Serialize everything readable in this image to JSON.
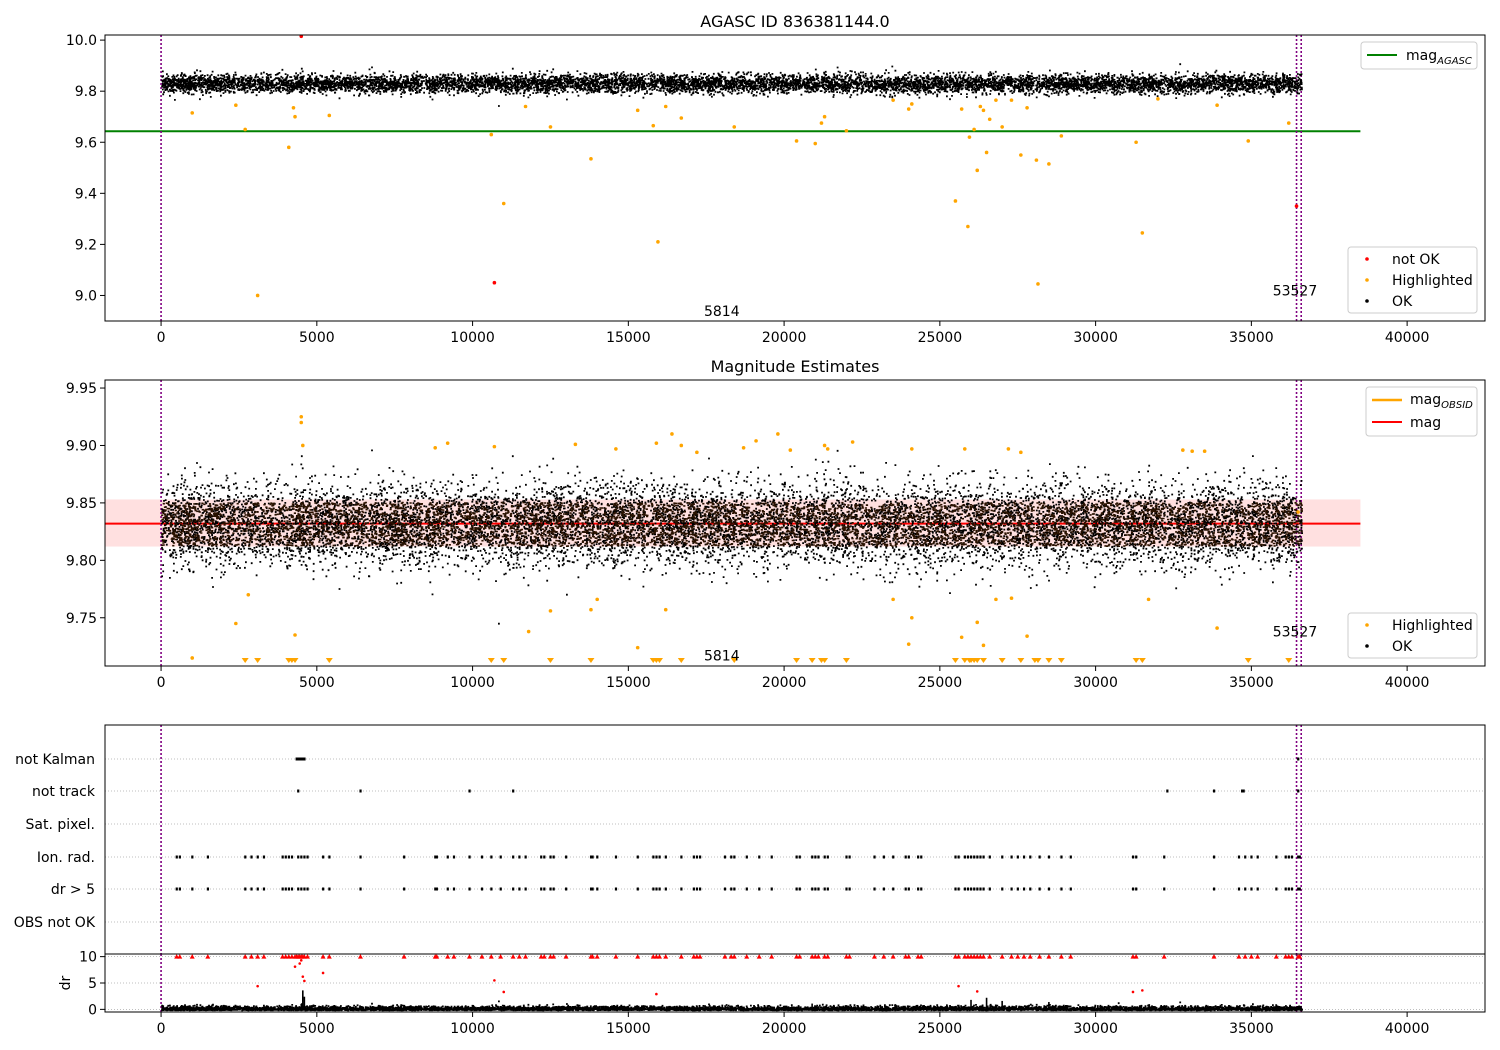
{
  "chart_data": [
    {
      "type": "scatter",
      "title": "AGASC ID 836381144.0",
      "xlim": [
        -1800,
        42500
      ],
      "ylim": [
        8.9,
        10.02
      ],
      "xticks": [
        0,
        5000,
        10000,
        15000,
        20000,
        25000,
        30000,
        35000,
        40000
      ],
      "yticks": [
        9.0,
        9.2,
        9.4,
        9.6,
        9.8,
        10.0
      ],
      "ytick_labels": [
        "9.0",
        "9.2",
        "9.4",
        "9.6",
        "9.8",
        "10.0"
      ],
      "reference_lines": [
        {
          "name": "mag_AGASC",
          "legend_main": "mag",
          "legend_sub": "AGASC",
          "y": 9.643,
          "x_range": [
            -1800,
            38500
          ],
          "color": "#008000"
        }
      ],
      "vertical_lines": {
        "x": [
          0,
          36450,
          36600
        ],
        "color": "#800080",
        "style": "dotted"
      },
      "annotations": [
        {
          "text": "5814",
          "x": 18000,
          "y": 8.94
        },
        {
          "text": "53527",
          "x": 36400,
          "y": 9.02
        }
      ],
      "ok_band": {
        "center": 9.832,
        "half_width": 0.04,
        "x_range": [
          0,
          36600
        ]
      },
      "outliers_highlighted": [
        {
          "x": 1000,
          "y": 9.715
        },
        {
          "x": 2400,
          "y": 9.745
        },
        {
          "x": 2700,
          "y": 9.65
        },
        {
          "x": 3100,
          "y": 9.0
        },
        {
          "x": 4100,
          "y": 9.58
        },
        {
          "x": 4250,
          "y": 9.735
        },
        {
          "x": 4300,
          "y": 9.7
        },
        {
          "x": 5400,
          "y": 9.705
        },
        {
          "x": 10600,
          "y": 9.63
        },
        {
          "x": 11000,
          "y": 9.36
        },
        {
          "x": 11700,
          "y": 9.74
        },
        {
          "x": 12500,
          "y": 9.66
        },
        {
          "x": 13800,
          "y": 9.535
        },
        {
          "x": 15300,
          "y": 9.725
        },
        {
          "x": 15800,
          "y": 9.665
        },
        {
          "x": 15950,
          "y": 9.21
        },
        {
          "x": 16200,
          "y": 9.74
        },
        {
          "x": 16700,
          "y": 9.695
        },
        {
          "x": 18400,
          "y": 9.66
        },
        {
          "x": 20400,
          "y": 9.605
        },
        {
          "x": 21000,
          "y": 9.595
        },
        {
          "x": 21200,
          "y": 9.675
        },
        {
          "x": 21300,
          "y": 9.7
        },
        {
          "x": 22000,
          "y": 9.645
        },
        {
          "x": 23500,
          "y": 9.765
        },
        {
          "x": 24000,
          "y": 9.73
        },
        {
          "x": 24100,
          "y": 9.75
        },
        {
          "x": 25500,
          "y": 9.37
        },
        {
          "x": 25700,
          "y": 9.73
        },
        {
          "x": 25900,
          "y": 9.27
        },
        {
          "x": 25950,
          "y": 9.62
        },
        {
          "x": 26100,
          "y": 9.65
        },
        {
          "x": 26200,
          "y": 9.49
        },
        {
          "x": 26300,
          "y": 9.74
        },
        {
          "x": 26400,
          "y": 9.725
        },
        {
          "x": 26500,
          "y": 9.56
        },
        {
          "x": 26600,
          "y": 9.69
        },
        {
          "x": 26800,
          "y": 9.765
        },
        {
          "x": 27000,
          "y": 9.66
        },
        {
          "x": 27300,
          "y": 9.765
        },
        {
          "x": 27600,
          "y": 9.55
        },
        {
          "x": 27800,
          "y": 9.735
        },
        {
          "x": 28100,
          "y": 9.53
        },
        {
          "x": 28150,
          "y": 9.045
        },
        {
          "x": 28500,
          "y": 9.515
        },
        {
          "x": 28900,
          "y": 9.625
        },
        {
          "x": 31300,
          "y": 9.6
        },
        {
          "x": 31500,
          "y": 9.245
        },
        {
          "x": 32000,
          "y": 9.77
        },
        {
          "x": 33900,
          "y": 9.745
        },
        {
          "x": 34900,
          "y": 9.605
        },
        {
          "x": 36200,
          "y": 9.675
        }
      ],
      "outliers_not_ok": [
        {
          "x": 4500,
          "y": 10.015
        },
        {
          "x": 10700,
          "y": 9.05
        },
        {
          "x": 36450,
          "y": 9.35
        }
      ],
      "legend": {
        "placement_top": "top-right",
        "placement_bottom": "bottom-right",
        "entries": [
          {
            "label": "not OK",
            "color": "#ff0000"
          },
          {
            "label": "Highlighted",
            "color": "#ffa500"
          },
          {
            "label": "OK",
            "color": "#000000"
          }
        ]
      }
    },
    {
      "type": "scatter",
      "title": "Magnitude Estimates",
      "xlim": [
        -1800,
        42500
      ],
      "ylim": [
        9.708,
        9.957
      ],
      "xticks": [
        0,
        5000,
        10000,
        15000,
        20000,
        25000,
        30000,
        35000,
        40000
      ],
      "yticks": [
        9.75,
        9.8,
        9.85,
        9.9,
        9.95
      ],
      "ytick_labels": [
        "9.75",
        "9.80",
        "9.85",
        "9.90",
        "9.95"
      ],
      "reference_lines": [
        {
          "name": "mag",
          "legend_main": "mag",
          "legend_sub": "",
          "y": 9.832,
          "x_range": [
            -1800,
            38500
          ],
          "color": "#ff0000"
        }
      ],
      "mag_band": {
        "y_range": [
          9.812,
          9.853
        ],
        "x_range": [
          -1800,
          38500
        ],
        "color": "#ffcccc"
      },
      "vertical_lines": {
        "x": [
          0,
          36450,
          36600
        ],
        "color": "#800080",
        "style": "dotted"
      },
      "annotations": [
        {
          "text": "5814",
          "x": 18000,
          "y": 9.717
        },
        {
          "text": "53527",
          "x": 36400,
          "y": 9.738
        }
      ],
      "outliers_highlighted": [
        {
          "x": 1000,
          "y": 9.715
        },
        {
          "x": 2400,
          "y": 9.745
        },
        {
          "x": 2800,
          "y": 9.77
        },
        {
          "x": 4300,
          "y": 9.735
        },
        {
          "x": 4500,
          "y": 9.925
        },
        {
          "x": 4500,
          "y": 9.92
        },
        {
          "x": 4550,
          "y": 9.9
        },
        {
          "x": 8800,
          "y": 9.898
        },
        {
          "x": 9200,
          "y": 9.902
        },
        {
          "x": 10700,
          "y": 9.899
        },
        {
          "x": 11800,
          "y": 9.738
        },
        {
          "x": 12500,
          "y": 9.756
        },
        {
          "x": 13300,
          "y": 9.901
        },
        {
          "x": 13800,
          "y": 9.757
        },
        {
          "x": 14000,
          "y": 9.766
        },
        {
          "x": 14600,
          "y": 9.897
        },
        {
          "x": 15300,
          "y": 9.724
        },
        {
          "x": 15900,
          "y": 9.902
        },
        {
          "x": 16200,
          "y": 9.757
        },
        {
          "x": 16400,
          "y": 9.91
        },
        {
          "x": 16700,
          "y": 9.9
        },
        {
          "x": 17200,
          "y": 9.894
        },
        {
          "x": 18700,
          "y": 9.898
        },
        {
          "x": 19100,
          "y": 9.904
        },
        {
          "x": 19800,
          "y": 9.91
        },
        {
          "x": 20200,
          "y": 9.896
        },
        {
          "x": 21300,
          "y": 9.9
        },
        {
          "x": 21400,
          "y": 9.897
        },
        {
          "x": 22200,
          "y": 9.903
        },
        {
          "x": 23500,
          "y": 9.766
        },
        {
          "x": 24000,
          "y": 9.727
        },
        {
          "x": 24100,
          "y": 9.75
        },
        {
          "x": 24100,
          "y": 9.897
        },
        {
          "x": 25700,
          "y": 9.733
        },
        {
          "x": 25800,
          "y": 9.897
        },
        {
          "x": 26200,
          "y": 9.746
        },
        {
          "x": 26400,
          "y": 9.726
        },
        {
          "x": 26800,
          "y": 9.766
        },
        {
          "x": 27200,
          "y": 9.897
        },
        {
          "x": 27300,
          "y": 9.767
        },
        {
          "x": 27600,
          "y": 9.894
        },
        {
          "x": 27800,
          "y": 9.734
        },
        {
          "x": 32800,
          "y": 9.896
        },
        {
          "x": 33100,
          "y": 9.895
        },
        {
          "x": 33500,
          "y": 9.895
        },
        {
          "x": 33900,
          "y": 9.741
        },
        {
          "x": 31700,
          "y": 9.766
        },
        {
          "x": 36500,
          "y": 9.842
        }
      ],
      "below_axis_markers": [
        2700,
        3100,
        4100,
        4200,
        4300,
        5400,
        10600,
        11000,
        12500,
        13800,
        15800,
        15900,
        16000,
        16700,
        18400,
        20400,
        20900,
        21200,
        21300,
        22000,
        25500,
        25800,
        25950,
        26000,
        26100,
        26200,
        26400,
        27000,
        27600,
        28050,
        28150,
        28500,
        28900,
        31300,
        31500,
        34900,
        36200
      ],
      "legend": {
        "placement_top": "top-right",
        "placement_bottom": "bottom-right",
        "entries_top": [
          {
            "label_main": "mag",
            "label_sub": "OBSID",
            "color": "#ffa500"
          },
          {
            "label_main": "mag",
            "label_sub": "",
            "color": "#ff0000"
          }
        ],
        "entries_bottom": [
          {
            "label": "Highlighted",
            "color": "#ffa500"
          },
          {
            "label": "OK",
            "color": "#000000"
          }
        ]
      }
    },
    {
      "type": "scatter",
      "title": "",
      "xlim": [
        -1800,
        42500
      ],
      "categories": [
        "not Kalman",
        "not track",
        "Sat. pixel.",
        "Ion. rad.",
        "dr > 5",
        "OBS not OK"
      ],
      "vertical_lines": {
        "x": [
          0,
          36450,
          36600
        ],
        "color": "#800080",
        "style": "dotted"
      },
      "flag_x": {
        "not Kalman": [
          4350,
          4400,
          4450,
          4500,
          4550,
          4600,
          36500
        ],
        "not track": [
          4400,
          6400,
          9900,
          11300,
          32300,
          33800,
          34700,
          34750,
          36500
        ],
        "Sat. pixel.": [],
        "Ion. rad.": [
          500,
          600,
          1000,
          1500,
          2700,
          2900,
          3100,
          3300,
          3900,
          4000,
          4100,
          4200,
          4400,
          4500,
          4600,
          4700,
          5200,
          5400,
          6400,
          7800,
          8800,
          8850,
          9200,
          9400,
          9900,
          10300,
          10600,
          10900,
          11300,
          11500,
          11700,
          12200,
          12300,
          12500,
          12600,
          13000,
          13800,
          13850,
          14000,
          14600,
          15300,
          15800,
          15900,
          16000,
          16200,
          16700,
          17100,
          17200,
          17300,
          18100,
          18300,
          18400,
          18800,
          19200,
          19600,
          20400,
          20500,
          20900,
          21000,
          21100,
          21300,
          21400,
          22000,
          22100,
          22900,
          23200,
          23500,
          23900,
          24000,
          24300,
          24400,
          25500,
          25600,
          25800,
          25900,
          26000,
          26100,
          26200,
          26300,
          26400,
          26600,
          27000,
          27300,
          27500,
          27700,
          27900,
          28200,
          28500,
          28900,
          29200,
          31200,
          31300,
          32200,
          33800,
          34600,
          34800,
          35000,
          35200,
          35800,
          36100,
          36200,
          36300,
          36500,
          36550
        ],
        "dr > 5": [
          500,
          600,
          1000,
          1500,
          2700,
          2900,
          3100,
          3300,
          3900,
          4000,
          4100,
          4200,
          4400,
          4500,
          4600,
          4700,
          5200,
          5400,
          6400,
          7800,
          8800,
          8850,
          9200,
          9400,
          9900,
          10300,
          10600,
          10900,
          11300,
          11500,
          11700,
          12200,
          12300,
          12500,
          12600,
          13000,
          13800,
          13850,
          14000,
          14600,
          15300,
          15800,
          15900,
          16000,
          16200,
          16700,
          17100,
          17200,
          17300,
          18100,
          18300,
          18400,
          18800,
          19200,
          19600,
          20400,
          20500,
          20900,
          21000,
          21100,
          21300,
          21400,
          22000,
          22100,
          22900,
          23200,
          23500,
          23900,
          24000,
          24300,
          24400,
          25500,
          25600,
          25800,
          25900,
          26000,
          26100,
          26200,
          26300,
          26400,
          26600,
          27000,
          27300,
          27500,
          27700,
          27900,
          28200,
          28500,
          28900,
          29200,
          31200,
          31300,
          32200,
          33800,
          34600,
          34800,
          35000,
          35200,
          35800,
          36100,
          36200,
          36300,
          36500,
          36550
        ],
        "OBS not OK": []
      }
    },
    {
      "type": "scatter",
      "title": "",
      "ylabel": "dr",
      "xlim": [
        -1800,
        42500
      ],
      "ylim": [
        -0.5,
        10.5
      ],
      "xticks": [
        0,
        5000,
        10000,
        15000,
        20000,
        25000,
        30000,
        35000,
        40000
      ],
      "yticks": [
        0,
        5,
        10
      ],
      "vertical_lines": {
        "x": [
          0,
          36450,
          36600
        ],
        "color": "#800080",
        "style": "dotted"
      },
      "capped_x": [
        500,
        600,
        1000,
        1500,
        2700,
        2900,
        3100,
        3300,
        3900,
        4000,
        4100,
        4200,
        4300,
        4350,
        4400,
        4450,
        4500,
        4550,
        4600,
        4700,
        5200,
        5400,
        6400,
        7800,
        8800,
        8850,
        9200,
        9400,
        9900,
        10300,
        10600,
        10900,
        11300,
        11500,
        11700,
        12200,
        12300,
        12500,
        12600,
        13000,
        13800,
        13850,
        14000,
        14600,
        15300,
        15800,
        15900,
        16000,
        16200,
        16700,
        17100,
        17200,
        17300,
        18100,
        18300,
        18400,
        18800,
        19200,
        19600,
        20400,
        20500,
        20900,
        21000,
        21100,
        21300,
        21400,
        22000,
        22100,
        22900,
        23200,
        23500,
        23900,
        24000,
        24300,
        24400,
        25500,
        25600,
        25800,
        25900,
        26000,
        26100,
        26200,
        26300,
        26400,
        26600,
        27000,
        27300,
        27500,
        27700,
        27900,
        28200,
        28500,
        28900,
        29200,
        31200,
        31300,
        32200,
        33800,
        34600,
        34800,
        35000,
        35200,
        35800,
        36100,
        36200,
        36300,
        36500,
        36550
      ],
      "red_points": [
        {
          "x": 3100,
          "y": 4.4
        },
        {
          "x": 4300,
          "y": 8.1
        },
        {
          "x": 4450,
          "y": 8.7
        },
        {
          "x": 4500,
          "y": 9.3
        },
        {
          "x": 4550,
          "y": 6.2
        },
        {
          "x": 4600,
          "y": 5.4
        },
        {
          "x": 5200,
          "y": 6.9
        },
        {
          "x": 10700,
          "y": 5.5
        },
        {
          "x": 11000,
          "y": 3.3
        },
        {
          "x": 15900,
          "y": 2.9
        },
        {
          "x": 25600,
          "y": 4.4
        },
        {
          "x": 26200,
          "y": 3.4
        },
        {
          "x": 31200,
          "y": 3.3
        },
        {
          "x": 31500,
          "y": 3.6
        }
      ],
      "black_spikes": [
        {
          "x": 4550,
          "y": 3.6
        },
        {
          "x": 4600,
          "y": 2.4
        },
        {
          "x": 26000,
          "y": 1.8
        },
        {
          "x": 26500,
          "y": 2.2
        },
        {
          "x": 27000,
          "y": 1.6
        },
        {
          "x": 28500,
          "y": 1.4
        },
        {
          "x": 20900,
          "y": 1.1
        }
      ]
    }
  ]
}
